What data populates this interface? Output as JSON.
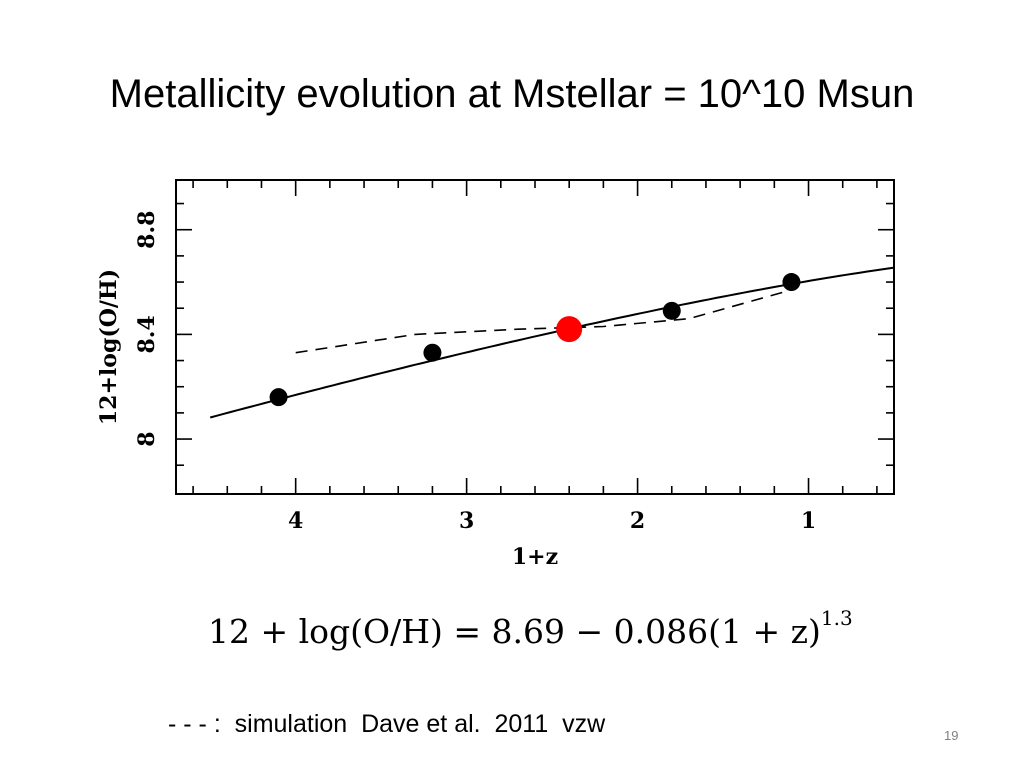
{
  "slide": {
    "title": "Metallicity evolution at Mstellar = 10^10 Msun",
    "formula": {
      "lhs": "12 + log(O/H)",
      "eq": " = ",
      "rhs": "8.69 − 0.086(1 + z)",
      "exponent": "1.3"
    },
    "footnote": "- - - :  simulation  Dave et al.  2011  vzw",
    "page_number": "19"
  },
  "chart_data": {
    "type": "scatter",
    "xlabel": "1+z",
    "ylabel": "12+log(O/H)",
    "x_ticks": [
      "4",
      "3",
      "2",
      "1"
    ],
    "y_ticks": [
      "8",
      "8.4",
      "8.8"
    ],
    "xlim": [
      4.7,
      0.5
    ],
    "ylim": [
      7.79,
      8.99
    ],
    "x_axis_reversed": true,
    "grid": false,
    "colors": {
      "points": "#000000",
      "highlight": "#ff0000",
      "lines": "#000000"
    },
    "series": [
      {
        "values": [
          [
            4.1,
            8.16
          ],
          [
            3.2,
            8.33
          ],
          [
            1.8,
            8.49
          ],
          [
            1.1,
            8.6
          ]
        ]
      }
    ],
    "highlight_point": {
      "x": 2.4,
      "y": 8.42
    },
    "fit_curve": {
      "a": 8.69,
      "b": 0.086,
      "p": 1.3,
      "x_range": [
        4.5,
        0.5
      ]
    },
    "simulation_line": {
      "values": [
        [
          4.0,
          8.33
        ],
        [
          3.3,
          8.4
        ],
        [
          2.7,
          8.42
        ],
        [
          2.2,
          8.43
        ],
        [
          1.7,
          8.46
        ],
        [
          1.1,
          8.57
        ]
      ]
    }
  }
}
